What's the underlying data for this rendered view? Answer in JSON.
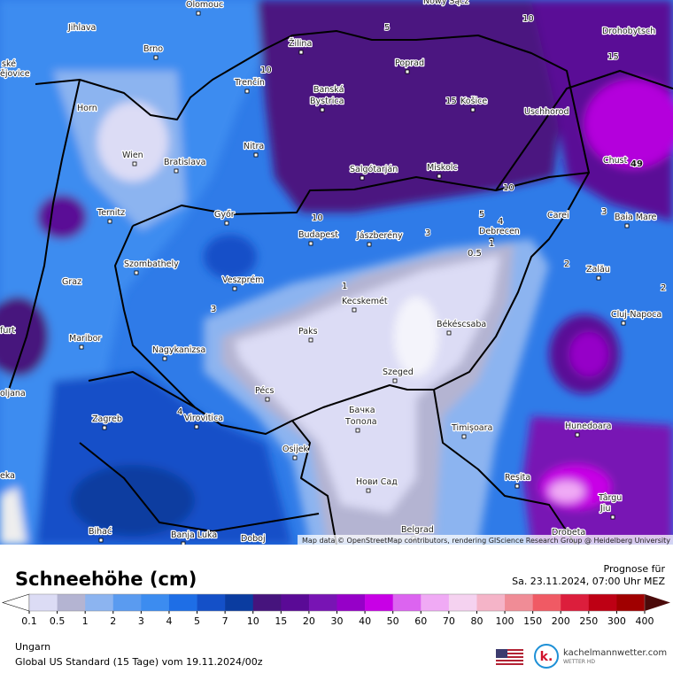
{
  "map": {
    "cities": [
      "Olomouc",
      "Nowy Sącz",
      "Jihlava",
      "Brno",
      "Žilina",
      "Poprad",
      "Drohobytsch",
      "Horn",
      "Trenčín",
      "Banská",
      "Bystrica",
      "Košice",
      "Uschhorod",
      "Wien",
      "Bratislava",
      "Nitra",
      "Salgótarján",
      "Miskolc",
      "Chust",
      "Ternitz",
      "Győr",
      "Budapest",
      "Jászberény",
      "Debrecen",
      "Carei",
      "Baia Mare",
      "Szombathely",
      "Graz",
      "Veszprém",
      "Zalău",
      "Kecskemét",
      "Cluj-Napoca",
      "Maribor",
      "Paks",
      "Békéscsaba",
      "Nagykanizsa",
      "Szeged",
      "Pécs",
      "Zagreb",
      "Virovitica",
      "Бачка",
      "Топола",
      "Timișoara",
      "Hunedoara",
      "Osijek",
      "Нови Сад",
      "Reșita",
      "Târgu",
      "Jiu",
      "Bihać",
      "Banja Luka",
      "Doboj",
      "Belgrad",
      "Drobeta",
      "ské",
      "ějovice",
      "furt",
      "oljana",
      "eka"
    ],
    "contour_labels": [
      49,
      0.5,
      1,
      5,
      4,
      3,
      10,
      15,
      10,
      15,
      10,
      2,
      3,
      4,
      1,
      2,
      3,
      10,
      5
    ],
    "attribution": "Map data © OpenStreetMap contributors, rendering GIScience Research Group @ Heidelberg University"
  },
  "legend": {
    "title": "Schneehöhe (cm)",
    "ticks": [
      0.1,
      0.5,
      1,
      2,
      3,
      4,
      5,
      7,
      10,
      15,
      20,
      30,
      40,
      50,
      60,
      70,
      80,
      100,
      150,
      200,
      250,
      300,
      400
    ],
    "colors": [
      "#dcdcf5",
      "#b4b4d2",
      "#8cb4f0",
      "#5a9bf0",
      "#3c8cf0",
      "#1e6ee6",
      "#1450c8",
      "#0a3ca0",
      "#46147d",
      "#5a0a96",
      "#7814b4",
      "#9600c8",
      "#c800e6",
      "#dc64f0",
      "#f0aaf5",
      "#f5d2f0",
      "#f5b4c8",
      "#f08c96",
      "#f05a64",
      "#dc1e3c",
      "#be0014",
      "#a00000"
    ],
    "under_color": "#ffffff",
    "over_color": "#4b0a0a"
  },
  "forecast": {
    "label": "Prognose für",
    "time": "Sa. 23.11.2024, 07:00 Uhr MEZ"
  },
  "region": "Ungarn",
  "model": "Global US Standard (15 Tage) vom  19.11.2024/00z",
  "brand": {
    "name": "kachelmannwetter.com",
    "tagline": "WETTER HD"
  }
}
